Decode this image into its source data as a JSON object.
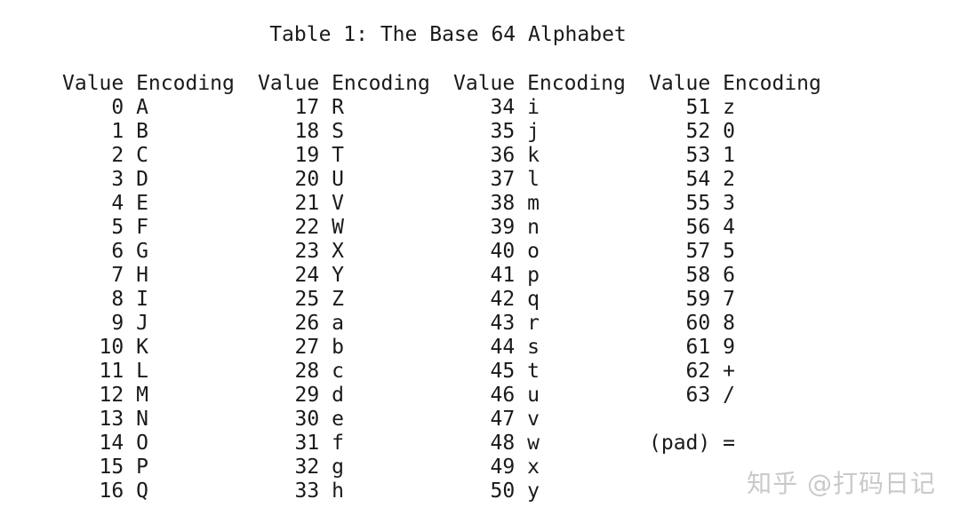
{
  "title": "Table 1: The Base 64 Alphabet",
  "column_header": {
    "value": "Value",
    "encoding": "Encoding"
  },
  "columns": [
    {
      "entries": [
        {
          "value": "0",
          "encoding": "A"
        },
        {
          "value": "1",
          "encoding": "B"
        },
        {
          "value": "2",
          "encoding": "C"
        },
        {
          "value": "3",
          "encoding": "D"
        },
        {
          "value": "4",
          "encoding": "E"
        },
        {
          "value": "5",
          "encoding": "F"
        },
        {
          "value": "6",
          "encoding": "G"
        },
        {
          "value": "7",
          "encoding": "H"
        },
        {
          "value": "8",
          "encoding": "I"
        },
        {
          "value": "9",
          "encoding": "J"
        },
        {
          "value": "10",
          "encoding": "K"
        },
        {
          "value": "11",
          "encoding": "L"
        },
        {
          "value": "12",
          "encoding": "M"
        },
        {
          "value": "13",
          "encoding": "N"
        },
        {
          "value": "14",
          "encoding": "O"
        },
        {
          "value": "15",
          "encoding": "P"
        },
        {
          "value": "16",
          "encoding": "Q"
        }
      ]
    },
    {
      "entries": [
        {
          "value": "17",
          "encoding": "R"
        },
        {
          "value": "18",
          "encoding": "S"
        },
        {
          "value": "19",
          "encoding": "T"
        },
        {
          "value": "20",
          "encoding": "U"
        },
        {
          "value": "21",
          "encoding": "V"
        },
        {
          "value": "22",
          "encoding": "W"
        },
        {
          "value": "23",
          "encoding": "X"
        },
        {
          "value": "24",
          "encoding": "Y"
        },
        {
          "value": "25",
          "encoding": "Z"
        },
        {
          "value": "26",
          "encoding": "a"
        },
        {
          "value": "27",
          "encoding": "b"
        },
        {
          "value": "28",
          "encoding": "c"
        },
        {
          "value": "29",
          "encoding": "d"
        },
        {
          "value": "30",
          "encoding": "e"
        },
        {
          "value": "31",
          "encoding": "f"
        },
        {
          "value": "32",
          "encoding": "g"
        },
        {
          "value": "33",
          "encoding": "h"
        }
      ]
    },
    {
      "entries": [
        {
          "value": "34",
          "encoding": "i"
        },
        {
          "value": "35",
          "encoding": "j"
        },
        {
          "value": "36",
          "encoding": "k"
        },
        {
          "value": "37",
          "encoding": "l"
        },
        {
          "value": "38",
          "encoding": "m"
        },
        {
          "value": "39",
          "encoding": "n"
        },
        {
          "value": "40",
          "encoding": "o"
        },
        {
          "value": "41",
          "encoding": "p"
        },
        {
          "value": "42",
          "encoding": "q"
        },
        {
          "value": "43",
          "encoding": "r"
        },
        {
          "value": "44",
          "encoding": "s"
        },
        {
          "value": "45",
          "encoding": "t"
        },
        {
          "value": "46",
          "encoding": "u"
        },
        {
          "value": "47",
          "encoding": "v"
        },
        {
          "value": "48",
          "encoding": "w"
        },
        {
          "value": "49",
          "encoding": "x"
        },
        {
          "value": "50",
          "encoding": "y"
        }
      ]
    },
    {
      "entries": [
        {
          "value": "51",
          "encoding": "z"
        },
        {
          "value": "52",
          "encoding": "0"
        },
        {
          "value": "53",
          "encoding": "1"
        },
        {
          "value": "54",
          "encoding": "2"
        },
        {
          "value": "55",
          "encoding": "3"
        },
        {
          "value": "56",
          "encoding": "4"
        },
        {
          "value": "57",
          "encoding": "5"
        },
        {
          "value": "58",
          "encoding": "6"
        },
        {
          "value": "59",
          "encoding": "7"
        },
        {
          "value": "60",
          "encoding": "8"
        },
        {
          "value": "61",
          "encoding": "9"
        },
        {
          "value": "62",
          "encoding": "+"
        },
        {
          "value": "63",
          "encoding": "/"
        },
        {
          "value": "",
          "encoding": ""
        },
        {
          "value": "(pad)",
          "encoding": "="
        }
      ]
    }
  ],
  "watermark": "知乎 @打码日记",
  "colors": {
    "text": "#1a1a1a",
    "background": "#ffffff",
    "watermark": "#c9c9c9"
  }
}
